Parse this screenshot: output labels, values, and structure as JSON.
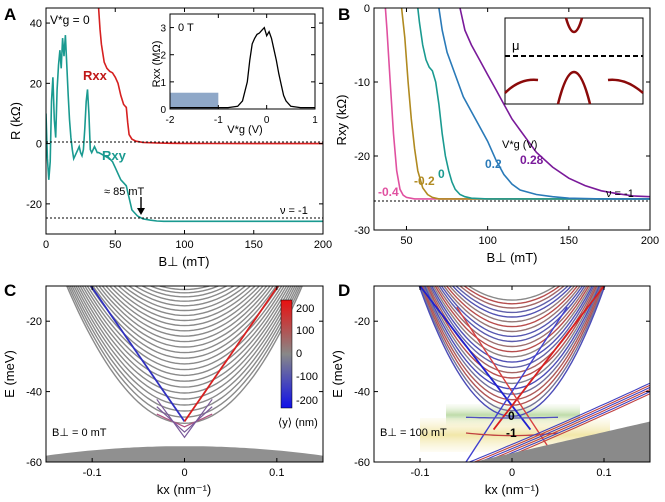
{
  "chart_data": [
    {
      "panel": "A",
      "type": "line",
      "xlabel": "B⊥ (mT)",
      "ylabel": "R (kΩ)",
      "xlim": [
        0,
        200
      ],
      "ylim": [
        -30,
        45
      ],
      "xticks": [
        0,
        50,
        100,
        150,
        200
      ],
      "yticks": [
        -20,
        0,
        20,
        40
      ],
      "annotations": {
        "vg": "V*g = 0",
        "rxx": "Rxx",
        "rxy": "Rxy",
        "field": "≈ 85 mT",
        "nu": "ν = -1"
      },
      "series": [
        {
          "name": "Rxx",
          "color": "#d62020",
          "x": [
            38,
            39,
            40,
            41,
            42,
            44,
            46,
            48,
            50,
            52,
            54,
            56,
            57,
            58,
            59,
            60,
            62,
            65,
            70,
            80,
            90,
            100,
            120,
            150,
            200
          ],
          "y": [
            45,
            38,
            33,
            30,
            27,
            25,
            24,
            23.5,
            22,
            20,
            16,
            13,
            12.5,
            12,
            7,
            3,
            1.5,
            0.8,
            0.4,
            0.2,
            0.1,
            0.05,
            0.02,
            0,
            0
          ]
        },
        {
          "name": "Rxy",
          "color": "#1a9a90",
          "x": [
            0,
            1,
            2,
            3,
            4,
            5,
            6,
            7,
            8,
            9,
            10,
            11,
            12,
            13,
            14,
            15,
            16,
            17,
            18,
            19,
            20,
            21,
            22,
            23,
            24,
            25,
            26,
            27,
            28,
            29,
            30,
            31,
            32,
            33,
            34,
            35,
            36,
            37,
            38,
            40,
            42,
            44,
            46,
            48,
            50,
            52,
            54,
            56,
            58,
            60,
            62,
            64,
            66,
            68,
            70,
            75,
            80,
            85,
            90,
            100,
            120,
            150,
            200
          ],
          "y": [
            10,
            -5,
            -12,
            -6,
            14,
            22,
            8,
            2,
            18,
            26,
            31,
            25,
            35,
            29,
            36,
            26,
            16,
            8,
            2,
            -2,
            -5,
            -4,
            -3,
            -2,
            -1,
            -3,
            -4,
            -2,
            5,
            14,
            18,
            10,
            -2,
            -3,
            -2,
            -1,
            -2,
            -3,
            -3,
            -3.5,
            -4,
            -4.5,
            -5,
            -6,
            -8,
            -10,
            -12,
            -13,
            -14,
            -18,
            -22,
            -23,
            -24,
            -24.5,
            -25,
            -25.4,
            -25.7,
            -25.8,
            -25.8,
            -25.8,
            -25.8,
            -25.8,
            -25.8
          ]
        }
      ],
      "inset": {
        "title": "0 T",
        "xlabel": "V*g (V)",
        "ylabel": "Rxx (MΩ)",
        "xlim": [
          -2,
          1
        ],
        "ylim": [
          0,
          3.5
        ],
        "xticks": [
          -2,
          -1,
          0,
          1
        ],
        "yticks": [
          0,
          1,
          2,
          3
        ],
        "shaded_region": [
          -2,
          -1
        ],
        "x": [
          -2,
          -1.5,
          -1,
          -0.8,
          -0.6,
          -0.5,
          -0.4,
          -0.35,
          -0.3,
          -0.25,
          -0.2,
          -0.15,
          -0.1,
          -0.05,
          0,
          0.05,
          0.1,
          0.15,
          0.2,
          0.25,
          0.3,
          0.35,
          0.4,
          0.5,
          0.7,
          1
        ],
        "y": [
          0.05,
          0.05,
          0.05,
          0.05,
          0.1,
          0.3,
          1.0,
          1.8,
          2.4,
          2.6,
          2.75,
          2.8,
          2.9,
          3.0,
          2.7,
          2.85,
          2.6,
          2.2,
          1.8,
          1.3,
          0.9,
          0.5,
          0.3,
          0.1,
          0.05,
          0.05
        ]
      }
    },
    {
      "panel": "B",
      "type": "line",
      "xlabel": "B⊥ (mT)",
      "ylabel": "Rxy (kΩ)",
      "xlim": [
        30,
        200
      ],
      "ylim": [
        -30,
        0
      ],
      "xticks": [
        50,
        100,
        150,
        200
      ],
      "yticks": [
        -30,
        -20,
        -10,
        0
      ],
      "legend_title": "V*g (V)",
      "nu": "ν = -1",
      "series": [
        {
          "name": "-0.4",
          "color": "#e050a0",
          "x": [
            37,
            38,
            40,
            42,
            44,
            46,
            48,
            50,
            55,
            60,
            80,
            120,
            200
          ],
          "y": [
            0,
            -3,
            -10,
            -17,
            -22,
            -24.5,
            -25.3,
            -25.6,
            -25.8,
            -25.8,
            -25.8,
            -25.8,
            -25.8
          ]
        },
        {
          "name": "-0.2",
          "color": "#b08a20",
          "x": [
            47,
            49,
            51,
            53,
            55,
            57,
            60,
            63,
            66,
            70,
            80,
            120,
            200
          ],
          "y": [
            0,
            -4,
            -10,
            -15,
            -19,
            -22,
            -24.3,
            -25.2,
            -25.6,
            -25.8,
            -25.8,
            -25.8,
            -25.8
          ]
        },
        {
          "name": "0",
          "color": "#1a9a90",
          "x": [
            57,
            58,
            60,
            62,
            64,
            66,
            68,
            70,
            72,
            74,
            76,
            78,
            80,
            83,
            86,
            90,
            100,
            120,
            200
          ],
          "y": [
            0,
            -2,
            -5,
            -7,
            -8,
            -8.5,
            -10,
            -13,
            -17,
            -20,
            -22,
            -23.5,
            -24.5,
            -25.2,
            -25.5,
            -25.7,
            -25.8,
            -25.8,
            -25.8
          ]
        },
        {
          "name": "0.2",
          "color": "#2a7ab8",
          "x": [
            70,
            72,
            75,
            80,
            85,
            90,
            95,
            100,
            105,
            110,
            115,
            120,
            130,
            140,
            150,
            170,
            200
          ],
          "y": [
            0,
            -3,
            -6,
            -9,
            -12,
            -14,
            -16,
            -18,
            -20.5,
            -22.5,
            -23.8,
            -24.6,
            -25.2,
            -25.5,
            -25.7,
            -25.8,
            -25.8
          ]
        },
        {
          "name": "0.28",
          "color": "#7a1a9a",
          "x": [
            83,
            86,
            90,
            95,
            100,
            105,
            110,
            115,
            120,
            125,
            130,
            140,
            150,
            160,
            170,
            180,
            190,
            200
          ],
          "y": [
            0,
            -3,
            -5,
            -7,
            -9,
            -11,
            -13,
            -15,
            -16.5,
            -18,
            -19.5,
            -21.5,
            -23,
            -24,
            -24.7,
            -25.1,
            -25.4,
            -25.5
          ]
        }
      ],
      "inset": {
        "label": "μ"
      }
    },
    {
      "panel": "C",
      "type": "line",
      "xlabel": "kx (nm⁻¹)",
      "ylabel": "E (meV)",
      "xlim": [
        -0.15,
        0.15
      ],
      "ylim": [
        -60,
        -10
      ],
      "xticks": [
        -0.1,
        0,
        0.1
      ],
      "yticks": [
        -60,
        -40,
        -20
      ],
      "field_label": "B⊥ = 0 mT",
      "colorbar": {
        "label": "⟨y⟩ (nm)",
        "ticks": [
          200,
          100,
          0,
          -100,
          -200
        ]
      }
    },
    {
      "panel": "D",
      "type": "line",
      "xlabel": "kx (nm⁻¹)",
      "ylabel": "E (meV)",
      "xlim": [
        -0.15,
        0.15
      ],
      "ylim": [
        -60,
        -10
      ],
      "xticks": [
        -0.1,
        0,
        0.1
      ],
      "yticks": [
        -60,
        -40,
        -20
      ],
      "field_label": "B⊥ = 100 mT",
      "gap_labels": [
        "0",
        "-1"
      ]
    }
  ],
  "panel_labels": [
    "A",
    "B",
    "C",
    "D"
  ],
  "colors": {
    "red": "#d62020",
    "teal": "#1a9a90",
    "gray": "#888888",
    "blue": "#2020d0"
  }
}
